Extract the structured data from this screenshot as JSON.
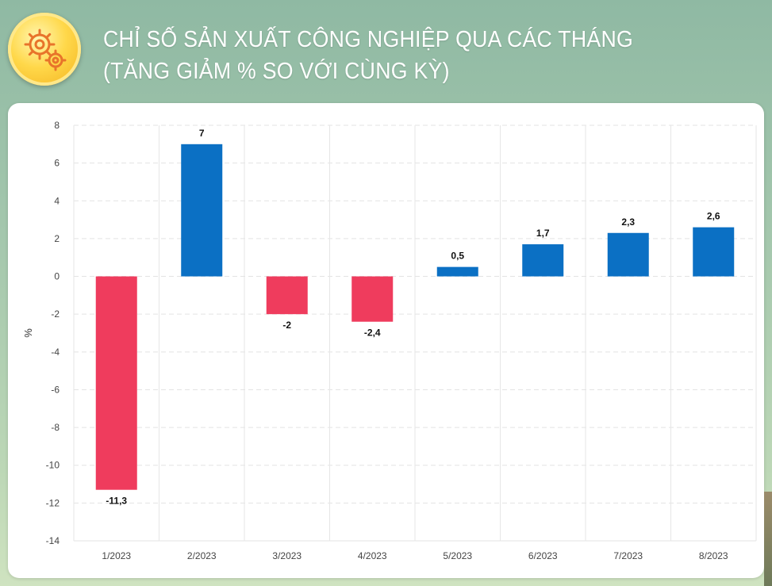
{
  "header": {
    "title": "CHỈ SỐ SẢN XUẤT CÔNG NGHIỆP QUA CÁC THÁNG (TĂNG GIẢM % SO VỚI CÙNG KỲ)",
    "logo_icon": "gears-icon"
  },
  "chart_data": {
    "type": "bar",
    "title": "CHỈ SỐ SẢN XUẤT CÔNG NGHIỆP QUA CÁC THÁNG (TĂNG GIẢM % SO VỚI CÙNG KỲ)",
    "categories": [
      "1/2023",
      "2/2023",
      "3/2023",
      "4/2023",
      "5/2023",
      "6/2023",
      "7/2023",
      "8/2023"
    ],
    "values": [
      -11.3,
      7,
      -2,
      -2.4,
      0.5,
      1.7,
      2.3,
      2.6
    ],
    "data_labels": [
      "-11,3",
      "7",
      "-2",
      "-2,4",
      "0,5",
      "1,7",
      "2,3",
      "2,6"
    ],
    "ylabel": "%",
    "xlabel": "",
    "ylim": [
      -14,
      8
    ],
    "yticks": [
      8,
      6,
      4,
      2,
      0,
      -2,
      -4,
      -6,
      -8,
      -10,
      -12,
      -14
    ],
    "grid": true,
    "colors": {
      "positive": "#0b70c4",
      "negative": "#ef3c5d"
    }
  }
}
